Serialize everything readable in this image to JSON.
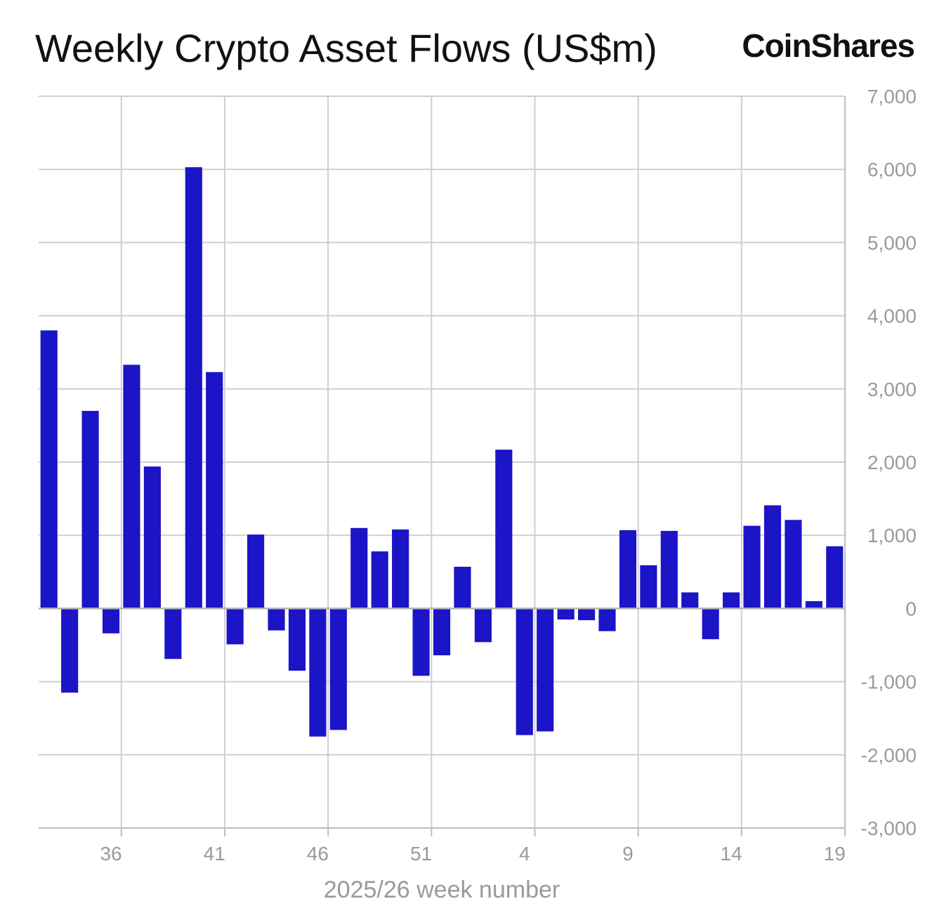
{
  "header": {
    "title": "Weekly Crypto Asset Flows (US$m)",
    "brand": "CoinShares"
  },
  "chart_data": {
    "type": "bar",
    "title": "Weekly Crypto Asset Flows (US$m)",
    "xlabel": "2025/26 week number",
    "ylabel": "",
    "ylim": [
      -3000,
      7000
    ],
    "y_ticks": [
      7000,
      6000,
      5000,
      4000,
      3000,
      2000,
      1000,
      0,
      -1000,
      -2000,
      -3000
    ],
    "y_tick_labels": [
      "7,000",
      "6,000",
      "5,000",
      "4,000",
      "3,000",
      "2,000",
      "1,000",
      "0",
      "-1,000",
      "-2,000",
      "-3,000"
    ],
    "x_tick_labels": [
      "36",
      "41",
      "46",
      "51",
      "4",
      "9",
      "14",
      "19"
    ],
    "grid": true,
    "bar_color": "#1c14c7",
    "categories": [
      "33",
      "34",
      "35",
      "36",
      "37",
      "38",
      "39",
      "40",
      "41",
      "42",
      "43",
      "44",
      "45",
      "46",
      "47",
      "48",
      "49",
      "50",
      "51",
      "52",
      "1",
      "2",
      "3",
      "4",
      "5",
      "6",
      "7",
      "8",
      "9",
      "10",
      "11",
      "12",
      "13",
      "14",
      "15",
      "16",
      "17",
      "18",
      "19"
    ],
    "values": [
      3800,
      -1150,
      2700,
      -340,
      3330,
      1940,
      -690,
      6030,
      3230,
      -490,
      1010,
      -300,
      -850,
      -1750,
      -1660,
      1100,
      780,
      1080,
      -920,
      -640,
      570,
      -460,
      2170,
      -1730,
      -1680,
      -150,
      -160,
      -310,
      1070,
      590,
      1060,
      220,
      -420,
      220,
      1130,
      1410,
      1210,
      100,
      850
    ]
  }
}
